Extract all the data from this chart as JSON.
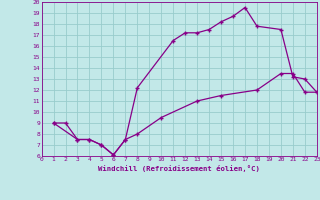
{
  "xlabel": "Windchill (Refroidissement éolien,°C)",
  "bg_color": "#c2e8e8",
  "line_color": "#880088",
  "grid_color": "#99cccc",
  "xmin": 0,
  "xmax": 23,
  "ymin": 6,
  "ymax": 20,
  "line1_x": [
    1,
    2,
    3,
    4,
    5,
    6,
    7,
    8,
    11,
    12,
    13,
    14,
    15,
    16,
    17,
    18,
    20,
    21,
    22,
    23
  ],
  "line1_y": [
    9,
    9,
    7.5,
    7.5,
    7,
    6.1,
    7.5,
    12.2,
    16.5,
    17.2,
    17.2,
    17.5,
    18.2,
    18.7,
    19.5,
    17.8,
    17.5,
    13.2,
    13.0,
    11.8
  ],
  "line2_x": [
    1,
    3,
    4,
    5,
    6,
    7,
    8,
    10,
    13,
    15,
    18,
    20,
    21,
    22,
    23
  ],
  "line2_y": [
    9.0,
    7.5,
    7.5,
    7.0,
    6.1,
    7.5,
    8.0,
    9.5,
    11.0,
    11.5,
    12.0,
    13.5,
    13.5,
    11.8,
    11.8
  ],
  "xticks": [
    0,
    1,
    2,
    3,
    4,
    5,
    6,
    7,
    8,
    9,
    10,
    11,
    12,
    13,
    14,
    15,
    16,
    17,
    18,
    19,
    20,
    21,
    22,
    23
  ],
  "yticks": [
    6,
    7,
    8,
    9,
    10,
    11,
    12,
    13,
    14,
    15,
    16,
    17,
    18,
    19,
    20
  ]
}
